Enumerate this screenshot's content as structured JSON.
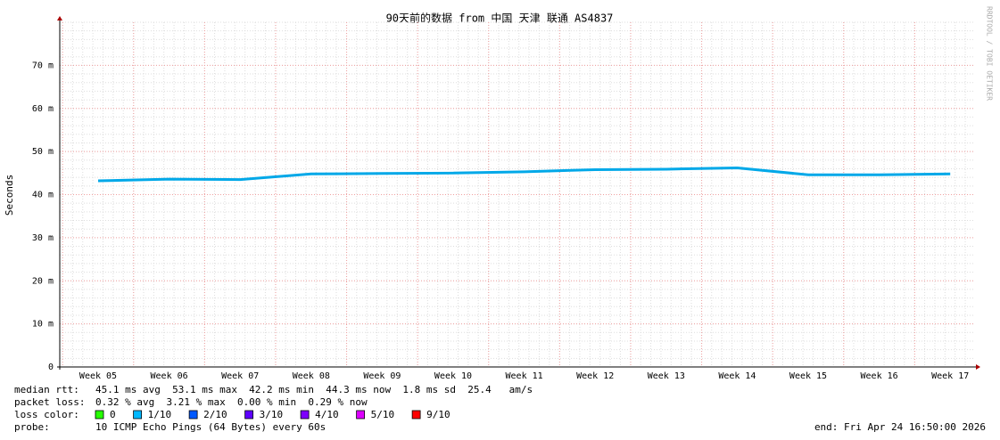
{
  "chart_data": {
    "type": "line",
    "title": "90天前的数据 from 中国 天津 联通 AS4837",
    "y_label": "Seconds",
    "side_text": "RRDTOOL / TOBI OETIKER",
    "categories": [
      "Week 05",
      "Week 06",
      "Week 07",
      "Week 08",
      "Week 09",
      "Week 10",
      "Week 11",
      "Week 12",
      "Week 13",
      "Week 14",
      "Week 15",
      "Week 16",
      "Week 17"
    ],
    "series": [
      {
        "name": "median rtt:",
        "color": "#00a8e8",
        "values": [
          43.2,
          43.6,
          43.5,
          44.8,
          44.9,
          45.0,
          45.3,
          45.8,
          45.9,
          46.2,
          44.6,
          44.6,
          44.8
        ]
      }
    ],
    "ylim": [
      0,
      80
    ],
    "yticks": [
      0,
      {
        "value": 10,
        "label": "10 m"
      },
      {
        "value": 20,
        "label": "20 m"
      },
      {
        "value": 30,
        "label": "30 m"
      },
      {
        "value": 40,
        "label": "40 m"
      },
      {
        "value": 50,
        "label": "50 m"
      },
      {
        "value": 60,
        "label": "60 m"
      },
      {
        "value": 70,
        "label": "70 m"
      }
    ],
    "grid": true,
    "median_rtt_stats": "45.1 ms avg  53.1 ms max  42.2 ms min  44.3 ms now  1.8 ms sd  25.4   am/s",
    "packet_loss": {
      "label": "packet loss:",
      "text": "0.32 % avg  3.21 % max  0.00 % min  0.29 % now"
    },
    "loss_color": {
      "label": "loss color:",
      "items": [
        {
          "label": "0",
          "color": "#26ff00"
        },
        {
          "label": "1/10",
          "color": "#00b8ff"
        },
        {
          "label": "2/10",
          "color": "#0059ff"
        },
        {
          "label": "3/10",
          "color": "#5e00ff"
        },
        {
          "label": "4/10",
          "color": "#7e00ff"
        },
        {
          "label": "5/10",
          "color": "#dd00ff"
        },
        {
          "label": "9/10",
          "color": "#ff0000"
        }
      ]
    },
    "probe": {
      "label": "probe:",
      "text": "10 ICMP Echo Pings (64 Bytes) every 60s"
    },
    "end": "end: Fri Apr 24 16:50:00 2026"
  }
}
